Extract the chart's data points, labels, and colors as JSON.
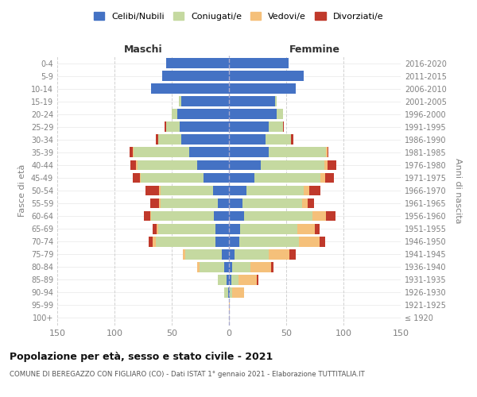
{
  "age_groups": [
    "100+",
    "95-99",
    "90-94",
    "85-89",
    "80-84",
    "75-79",
    "70-74",
    "65-69",
    "60-64",
    "55-59",
    "50-54",
    "45-49",
    "40-44",
    "35-39",
    "30-34",
    "25-29",
    "20-24",
    "15-19",
    "10-14",
    "5-9",
    "0-4"
  ],
  "birth_years": [
    "≤ 1920",
    "1921-1925",
    "1926-1930",
    "1931-1935",
    "1936-1940",
    "1941-1945",
    "1946-1950",
    "1951-1955",
    "1956-1960",
    "1961-1965",
    "1966-1970",
    "1971-1975",
    "1976-1980",
    "1981-1985",
    "1986-1990",
    "1991-1995",
    "1996-2000",
    "2001-2005",
    "2006-2010",
    "2011-2015",
    "2016-2020"
  ],
  "maschi": {
    "celibi": [
      0,
      0,
      1,
      2,
      4,
      6,
      12,
      12,
      13,
      10,
      14,
      22,
      28,
      35,
      42,
      43,
      45,
      42,
      68,
      58,
      55
    ],
    "coniugati": [
      0,
      0,
      3,
      8,
      22,
      32,
      52,
      50,
      55,
      50,
      46,
      55,
      52,
      48,
      20,
      12,
      5,
      2,
      0,
      0,
      0
    ],
    "vedovi": [
      0,
      0,
      0,
      0,
      2,
      2,
      3,
      1,
      1,
      1,
      1,
      1,
      1,
      1,
      0,
      0,
      0,
      0,
      0,
      0,
      0
    ],
    "divorziati": [
      0,
      0,
      0,
      0,
      0,
      0,
      3,
      4,
      5,
      8,
      12,
      6,
      5,
      3,
      2,
      1,
      0,
      0,
      0,
      0,
      0
    ]
  },
  "femmine": {
    "nubili": [
      0,
      0,
      1,
      2,
      3,
      5,
      9,
      10,
      13,
      12,
      15,
      22,
      28,
      35,
      32,
      35,
      42,
      40,
      58,
      65,
      52
    ],
    "coniugate": [
      0,
      0,
      2,
      6,
      16,
      30,
      52,
      50,
      60,
      52,
      50,
      58,
      55,
      50,
      22,
      12,
      5,
      2,
      0,
      0,
      0
    ],
    "vedove": [
      0,
      1,
      10,
      16,
      18,
      18,
      18,
      15,
      12,
      5,
      5,
      4,
      3,
      1,
      0,
      0,
      0,
      0,
      0,
      0,
      0
    ],
    "divorziate": [
      0,
      0,
      0,
      2,
      2,
      5,
      5,
      4,
      8,
      5,
      10,
      8,
      8,
      1,
      2,
      1,
      0,
      0,
      0,
      0,
      0
    ]
  },
  "colors": {
    "celibi": "#4472c4",
    "coniugati": "#c5d9a0",
    "vedovi": "#f5c07a",
    "divorziati": "#c0392b"
  },
  "title": "Popolazione per età, sesso e stato civile - 2021",
  "subtitle": "COMUNE DI BEREGAZZO CON FIGLIARO (CO) - Dati ISTAT 1° gennaio 2021 - Elaborazione TUTTITALIA.IT",
  "xlabel_left": "Maschi",
  "xlabel_right": "Femmine",
  "ylabel_left": "Fasce di età",
  "ylabel_right": "Anni di nascita",
  "xlim": 150,
  "bg_color": "#ffffff",
  "grid_color": "#cccccc",
  "legend_labels": [
    "Celibi/Nubili",
    "Coniugati/e",
    "Vedovi/e",
    "Divorziati/e"
  ]
}
